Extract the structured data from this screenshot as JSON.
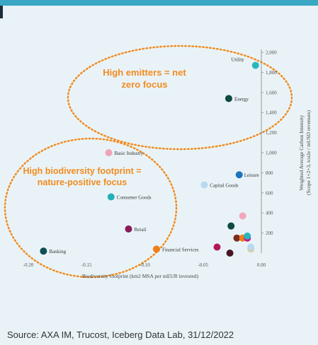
{
  "source_text": "Source: AXA IM, Trucost, Iceberg Data Lab, 31/12/2022",
  "chart_data": {
    "type": "scatter",
    "xlabel": "Biodiversity footprint (km2 MSA per mEUR invested)",
    "ylabel_line1": "Weighted Average Carbon Intensity",
    "ylabel_line2": "(Scope 1+2+3, tco2e / mUSD revenues)",
    "xlim": [
      -0.2,
      0.0
    ],
    "ylim": [
      0,
      2000
    ],
    "x_ticks": [
      {
        "value": -0.2,
        "label": "-0.20"
      },
      {
        "value": -0.15,
        "label": "-0.15"
      },
      {
        "value": -0.1,
        "label": "-0.10"
      },
      {
        "value": -0.05,
        "label": "-0.05"
      },
      {
        "value": 0.0,
        "label": "0.00"
      }
    ],
    "y_ticks": [
      {
        "value": 200,
        "label": "200"
      },
      {
        "value": 400,
        "label": "400"
      },
      {
        "value": 600,
        "label": "600"
      },
      {
        "value": 800,
        "label": "800"
      },
      {
        "value": 1000,
        "label": "1,000"
      },
      {
        "value": 1200,
        "label": "1,200"
      },
      {
        "value": 1400,
        "label": "1,400"
      },
      {
        "value": 1600,
        "label": "1,600"
      },
      {
        "value": 1800,
        "label": "1,800"
      },
      {
        "value": 2000,
        "label": "2,000"
      }
    ],
    "points": [
      {
        "label": "Utility",
        "x": -0.005,
        "y": 1870,
        "color": "#2bb5c0"
      },
      {
        "label": "Energy",
        "x": -0.028,
        "y": 1540,
        "color": "#0d4a3f"
      },
      {
        "label": "Basic Industry",
        "x": -0.131,
        "y": 1000,
        "color": "#f0a3b8"
      },
      {
        "label": "Leisure",
        "x": -0.019,
        "y": 780,
        "color": "#1e73be"
      },
      {
        "label": "Capital Goods",
        "x": -0.049,
        "y": 680,
        "color": "#b9d9ef"
      },
      {
        "label": "Consumer Goods",
        "x": -0.129,
        "y": 560,
        "color": "#1fb0b8"
      },
      {
        "label": "Retail",
        "x": -0.114,
        "y": 240,
        "color": "#8a1a5a"
      },
      {
        "label": "Banking",
        "x": -0.187,
        "y": 20,
        "color": "#0d5052"
      },
      {
        "label": "Financial Services",
        "x": -0.09,
        "y": 40,
        "color": "#f07d1a"
      },
      {
        "label": "",
        "x": -0.016,
        "y": 370,
        "color": "#f2a7bf"
      },
      {
        "label": "",
        "x": -0.026,
        "y": 270,
        "color": "#0d4a3f"
      },
      {
        "label": "",
        "x": -0.021,
        "y": 150,
        "color": "#7a2e1e"
      },
      {
        "label": "",
        "x": -0.016,
        "y": 150,
        "color": "#f07d1a"
      },
      {
        "label": "",
        "x": -0.012,
        "y": 150,
        "color": "#c71585"
      },
      {
        "label": "",
        "x": -0.012,
        "y": 170,
        "color": "#2bb5c0"
      },
      {
        "label": "",
        "x": -0.038,
        "y": 60,
        "color": "#b5195b"
      },
      {
        "label": "",
        "x": -0.027,
        "y": 0,
        "color": "#4a1420"
      },
      {
        "label": "",
        "x": -0.009,
        "y": 40,
        "color": "#d9cfa5"
      },
      {
        "label": "",
        "x": -0.009,
        "y": 60,
        "color": "#b9d9ef"
      }
    ],
    "annotations": [
      {
        "lines": [
          "High emitters = net",
          "zero focus"
        ]
      },
      {
        "lines": [
          "High biodiversity footprint =",
          "nature-positive focus"
        ]
      }
    ]
  }
}
